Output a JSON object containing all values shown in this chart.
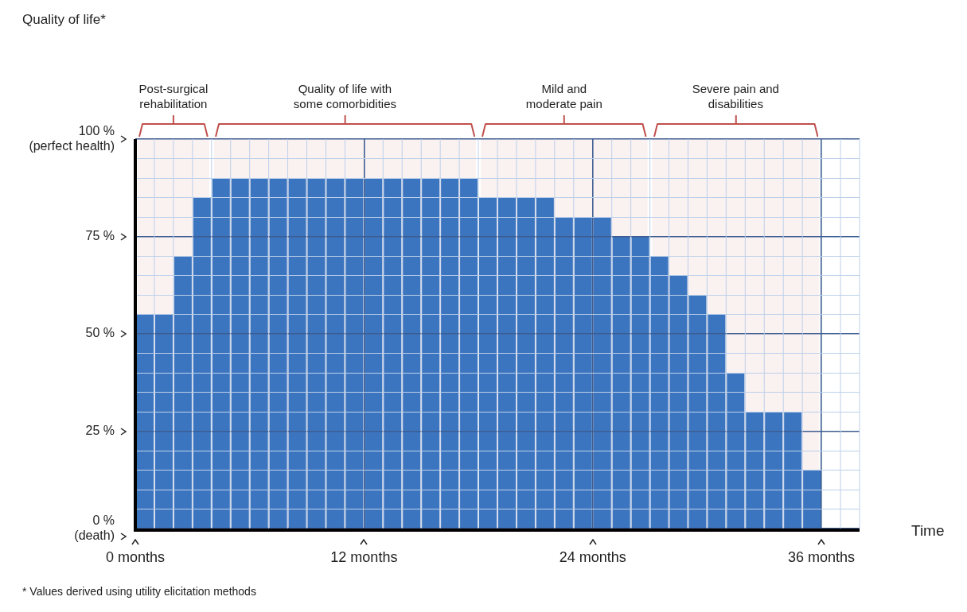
{
  "chart_data": {
    "type": "bar",
    "x": [
      0.5,
      1.5,
      2.5,
      3.5,
      4.5,
      5.5,
      6.5,
      7.5,
      8.5,
      9.5,
      10.5,
      11.5,
      12.5,
      13.5,
      14.5,
      15.5,
      16.5,
      17.5,
      18.5,
      19.5,
      20.5,
      21.5,
      22.5,
      23.5,
      24.5,
      25.5,
      26.5,
      27.5,
      28.5,
      29.5,
      30.5,
      31.5,
      32.5,
      33.5,
      34.5,
      35.5
    ],
    "values": [
      55,
      55,
      70,
      85,
      90,
      90,
      90,
      90,
      90,
      90,
      90,
      90,
      90,
      90,
      90,
      90,
      90,
      90,
      85,
      85,
      85,
      85,
      80,
      80,
      80,
      75,
      75,
      70,
      65,
      60,
      55,
      40,
      30,
      30,
      30,
      15
    ],
    "color": "#3c75bf",
    "xlim": [
      0,
      38
    ],
    "ylim": [
      0,
      100
    ],
    "xticks": [
      {
        "value": 0,
        "label": "0 months"
      },
      {
        "value": 12,
        "label": "12 months"
      },
      {
        "value": 24,
        "label": "24 months"
      },
      {
        "value": 36,
        "label": "36 months"
      }
    ],
    "yticks": [
      {
        "value": 0,
        "label": "0 %\n(death)"
      },
      {
        "value": 5,
        "label": null
      },
      {
        "value": 10,
        "label": null
      },
      {
        "value": 15,
        "label": null
      },
      {
        "value": 20,
        "label": null
      },
      {
        "value": 25,
        "label": "25 %"
      },
      {
        "value": 30,
        "label": null
      },
      {
        "value": 35,
        "label": null
      },
      {
        "value": 40,
        "label": null
      },
      {
        "value": 45,
        "label": null
      },
      {
        "value": 50,
        "label": "50 %"
      },
      {
        "value": 55,
        "label": null
      },
      {
        "value": 60,
        "label": null
      },
      {
        "value": 65,
        "label": null
      },
      {
        "value": 70,
        "label": null
      },
      {
        "value": 75,
        "label": "75 %"
      },
      {
        "value": 80,
        "label": null
      },
      {
        "value": 85,
        "label": null
      },
      {
        "value": 90,
        "label": null
      },
      {
        "value": 95,
        "label": null
      },
      {
        "value": 100,
        "label": "100 %\n(perfect health)"
      }
    ],
    "grid": true,
    "bands": [
      {
        "axis": "x",
        "from": 0,
        "to": 4,
        "label": "Post-surgical rehabilitation",
        "color": "#c0504d"
      },
      {
        "axis": "x",
        "from": 4,
        "to": 18,
        "label": "Quality of life with some comorbidities",
        "color": "#c0504d"
      },
      {
        "axis": "x",
        "from": 18,
        "to": 27,
        "label": "Mild and moderate pain",
        "color": "#c0504d"
      },
      {
        "axis": "x",
        "from": 27,
        "to": 36,
        "label": "Severe pain and disabilities",
        "color": "#c0504d"
      }
    ],
    "annotations": [
      "Quality of life*",
      "* Values derived using utility elicitation methods",
      "Time"
    ]
  }
}
